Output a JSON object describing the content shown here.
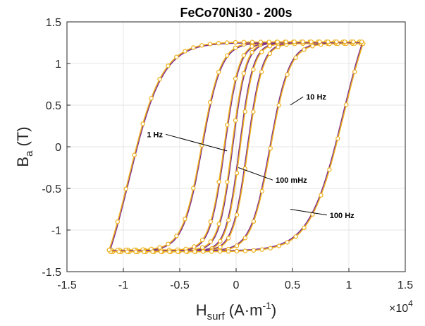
{
  "chart_data": {
    "type": "line",
    "title": "FeCo70Ni30 - 200s",
    "xlabel": {
      "main": "H",
      "sub": "surf",
      "unit": " (A·m",
      "sup": "-1",
      "close": ")"
    },
    "ylabel": {
      "main": "B",
      "sub": "a",
      "unit": " (T)"
    },
    "x_multiplier": {
      "base": "×10",
      "exp": "4"
    },
    "xlim": [
      -1.5,
      1.5
    ],
    "ylim": [
      -1.5,
      1.5
    ],
    "xticks": [
      -1.5,
      -1,
      -0.5,
      0,
      0.5,
      1,
      1.5
    ],
    "xtick_labels": [
      "-1.5",
      "-1",
      "-0.5",
      "0",
      "0.5",
      "1",
      "1.5"
    ],
    "yticks": [
      -1.5,
      -1,
      -0.5,
      0,
      0.5,
      1,
      1.5
    ],
    "ytick_labels": [
      "-1.5",
      "-1",
      "-0.5",
      "0",
      "0.5",
      "1",
      "1.5"
    ],
    "grid": true,
    "colors": {
      "model": "#7e2f8e",
      "measured": "#edb120"
    },
    "loops": [
      {
        "label": "100 mHz",
        "Hc": 0.03,
        "Hmax": 1.1,
        "Bs": 1.25,
        "k": 0.12,
        "r": 0.95
      },
      {
        "label": "1 Hz",
        "Hc": 0.1,
        "Hmax": 1.1,
        "Bs": 1.25,
        "k": 0.13,
        "r": 0.95
      },
      {
        "label": "10 Hz",
        "Hc": 0.3,
        "Hmax": 1.12,
        "Bs": 1.25,
        "k": 0.17,
        "r": 0.95
      },
      {
        "label": "100 Hz",
        "Hc": 0.95,
        "Hmax": 1.12,
        "Bs": 1.25,
        "k": 0.3,
        "r": 1
      }
    ],
    "annotations": [
      {
        "text": "10 Hz",
        "x": 0.62,
        "y": 0.6,
        "ax": 0.48,
        "ay": 0.5
      },
      {
        "text": "1 Hz",
        "x": -0.65,
        "y": 0.15,
        "ax": -0.08,
        "ay": -0.05
      },
      {
        "text": "100 mHz",
        "x": 0.35,
        "y": -0.4,
        "ax": 0.02,
        "ay": -0.25
      },
      {
        "text": "100 Hz",
        "x": 0.83,
        "y": -0.82,
        "ax": 0.48,
        "ay": -0.75
      }
    ]
  }
}
